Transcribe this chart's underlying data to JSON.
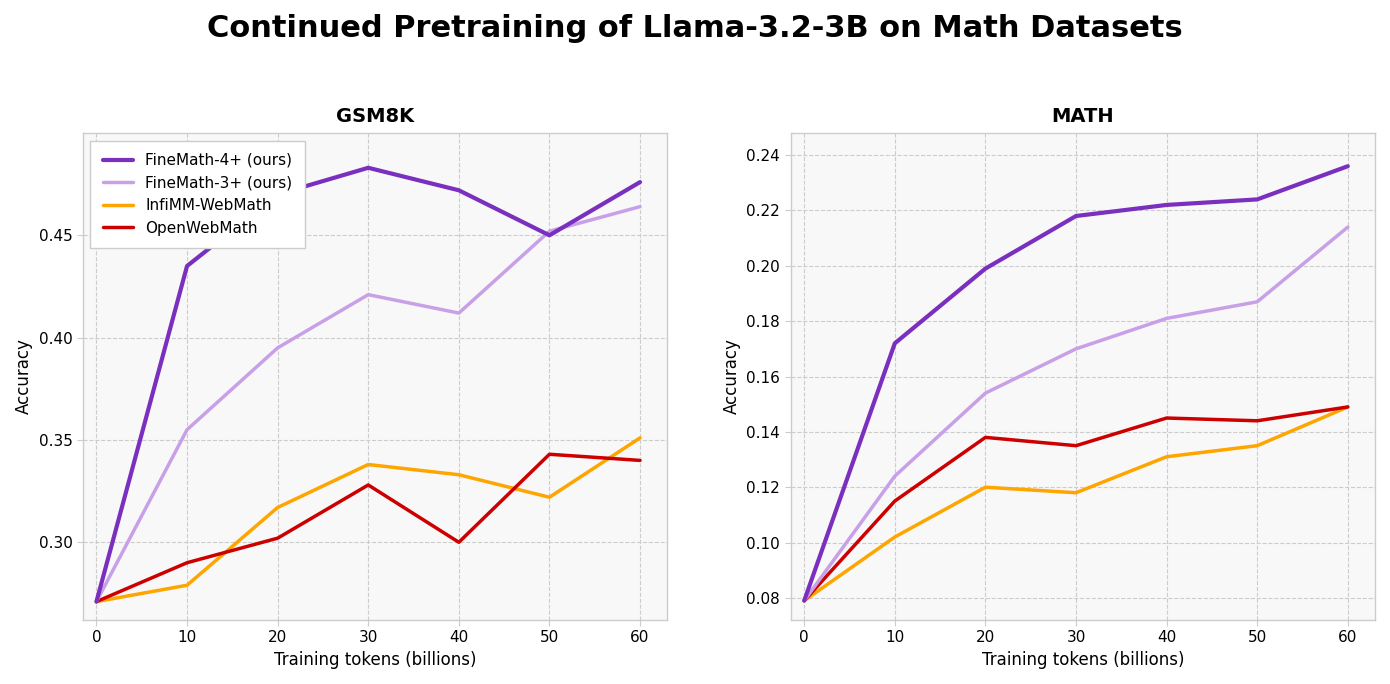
{
  "title": "Continued Pretraining of Llama-3.2-3B on Math Datasets",
  "x_values": [
    0,
    10,
    20,
    30,
    40,
    50,
    60
  ],
  "xlabel": "Training tokens (billions)",
  "ylabel": "Accuracy",
  "gsm8k": {
    "subtitle": "GSM8K",
    "finemath4": [
      0.271,
      0.435,
      0.47,
      0.483,
      0.472,
      0.45,
      0.476
    ],
    "finemath3": [
      0.271,
      0.355,
      0.395,
      0.421,
      0.412,
      0.452,
      0.464
    ],
    "infimm": [
      0.271,
      0.279,
      0.317,
      0.338,
      0.333,
      0.322,
      0.351
    ],
    "owm": [
      0.271,
      0.29,
      0.302,
      0.328,
      0.3,
      0.343,
      0.34
    ],
    "ylim": [
      0.262,
      0.5
    ],
    "yticks": [
      0.3,
      0.35,
      0.4,
      0.45
    ]
  },
  "math": {
    "subtitle": "MATH",
    "finemath4": [
      0.079,
      0.172,
      0.199,
      0.218,
      0.222,
      0.224,
      0.236
    ],
    "finemath3": [
      0.079,
      0.124,
      0.154,
      0.17,
      0.181,
      0.187,
      0.214
    ],
    "infimm": [
      0.079,
      0.102,
      0.12,
      0.118,
      0.131,
      0.135,
      0.149
    ],
    "owm": [
      0.079,
      0.115,
      0.138,
      0.135,
      0.145,
      0.144,
      0.149
    ],
    "ylim": [
      0.072,
      0.248
    ],
    "yticks": [
      0.08,
      0.1,
      0.12,
      0.14,
      0.16,
      0.18,
      0.2,
      0.22,
      0.24
    ]
  },
  "colors": {
    "finemath4": "#7B2FBE",
    "finemath3": "#C8A0E8",
    "infimm": "#FFA500",
    "owm": "#CC0000"
  },
  "linewidths": {
    "finemath4": 3.0,
    "finemath3": 2.5,
    "infimm": 2.5,
    "owm": 2.5
  },
  "legend_labels": {
    "finemath4": "FineMath-4+ (ours)",
    "finemath3": "FineMath-3+ (ours)",
    "infimm": "InfiMM-WebMath",
    "owm": "OpenWebMath"
  },
  "title_fontsize": 22,
  "subtitle_fontsize": 14,
  "label_fontsize": 12,
  "tick_fontsize": 11,
  "legend_fontsize": 11,
  "background_color": "#f8f8f8",
  "grid_color": "#cccccc",
  "spine_color": "#cccccc"
}
